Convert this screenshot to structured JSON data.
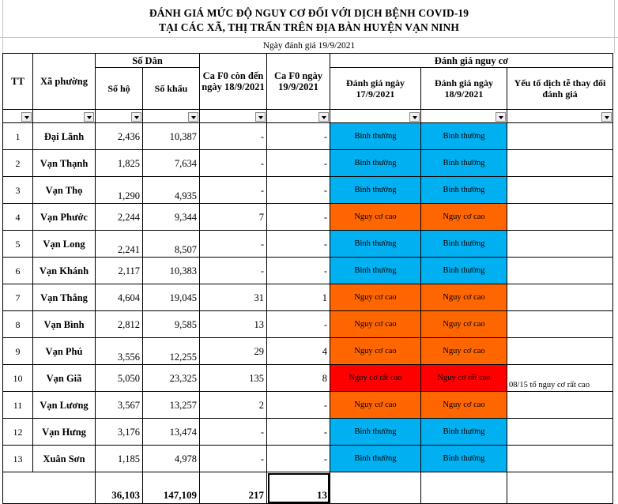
{
  "title_line1": "ĐÁNH GIÁ MỨC ĐỘ NGUY CƠ ĐỐI VỚI DỊCH BỆNH COVID-19",
  "title_line2": "TẠI CÁC XÃ, THỊ TRẤN TRÊN ĐỊA BÀN HUYỆN VẠN NINH",
  "eval_date": "Ngày đánh giá 19/9/2021",
  "headers": {
    "tt": "TT",
    "ward": "Xã phường",
    "population": "Số Dân",
    "households": "Số hộ",
    "persons": "Số khẩu",
    "f0_remaining": "Ca F0 còn đến ngày 18/9/2021",
    "f0_day": "Ca F0 ngày 19/9/2021",
    "risk": "Đánh giá nguy cơ",
    "risk_17": "Đánh giá ngày 17/9/2021",
    "risk_18": "Đánh giá ngày 18/9/2021",
    "factors": "Yếu tố dịch tễ thay đổi đánh giá"
  },
  "colors": {
    "normal": "#00b0f0",
    "high": "#ff6600",
    "very_high": "#ff0000"
  },
  "rows": [
    {
      "tt": "1",
      "name": "Đại Lãnh",
      "ho": "2,436",
      "khau": "10,387",
      "f0_remaining": "-",
      "f0_day": "-",
      "risk17": "Bình thường",
      "risk18": "Bình thường",
      "note": ""
    },
    {
      "tt": "2",
      "name": "Vạn Thạnh",
      "ho": "1,825",
      "khau": "7,634",
      "f0_remaining": "-",
      "f0_day": "-",
      "risk17": "Bình thường",
      "risk18": "Bình thường",
      "note": ""
    },
    {
      "tt": "3",
      "name": "Vạn Thọ",
      "ho": "1,290",
      "khau": "4,935",
      "f0_remaining": "-",
      "f0_day": "-",
      "risk17": "Bình thường",
      "risk18": "Bình thường",
      "note": ""
    },
    {
      "tt": "4",
      "name": "Vạn Phước",
      "ho": "2,244",
      "khau": "9,344",
      "f0_remaining": "7",
      "f0_day": "-",
      "risk17": "Nguy cơ cao",
      "risk18": "Nguy cơ cao",
      "note": ""
    },
    {
      "tt": "5",
      "name": "Vạn Long",
      "ho": "2,241",
      "khau": "8,507",
      "f0_remaining": "-",
      "f0_day": "-",
      "risk17": "Bình thường",
      "risk18": "Bình thường",
      "note": ""
    },
    {
      "tt": "6",
      "name": "Vạn Khánh",
      "ho": "2,117",
      "khau": "10,383",
      "f0_remaining": "-",
      "f0_day": "-",
      "risk17": "Bình thường",
      "risk18": "Bình thường",
      "note": ""
    },
    {
      "tt": "7",
      "name": "Vạn Thắng",
      "ho": "4,604",
      "khau": "19,045",
      "f0_remaining": "31",
      "f0_day": "1",
      "risk17": "Nguy cơ cao",
      "risk18": "Nguy cơ cao",
      "note": ""
    },
    {
      "tt": "8",
      "name": "Vạn Bình",
      "ho": "2,812",
      "khau": "9,585",
      "f0_remaining": "13",
      "f0_day": "-",
      "risk17": "Nguy cơ cao",
      "risk18": "Nguy cơ cao",
      "note": ""
    },
    {
      "tt": "9",
      "name": "Vạn Phú",
      "ho": "3,556",
      "khau": "12,255",
      "f0_remaining": "29",
      "f0_day": "4",
      "risk17": "Nguy cơ cao",
      "risk18": "Nguy cơ cao",
      "note": ""
    },
    {
      "tt": "10",
      "name": "Vạn Giã",
      "ho": "5,050",
      "khau": "23,325",
      "f0_remaining": "135",
      "f0_day": "8",
      "risk17": "Nguy cơ rất cao",
      "risk18": "Nguy cơ rất cao",
      "note": "08/15 tổ nguy cơ rất cao"
    },
    {
      "tt": "11",
      "name": "Vạn Lương",
      "ho": "3,567",
      "khau": "13,257",
      "f0_remaining": "2",
      "f0_day": "-",
      "risk17": "Nguy cơ cao",
      "risk18": "Nguy cơ cao",
      "note": ""
    },
    {
      "tt": "12",
      "name": "Vạn Hưng",
      "ho": "3,176",
      "khau": "13,474",
      "f0_remaining": "-",
      "f0_day": "-",
      "risk17": "Bình thường",
      "risk18": "Bình thường",
      "note": ""
    },
    {
      "tt": "13",
      "name": "Xuân Sơn",
      "ho": "1,185",
      "khau": "4,978",
      "f0_remaining": "-",
      "f0_day": "-",
      "risk17": "Bình thường",
      "risk18": "Bình thường",
      "note": ""
    }
  ],
  "totals": {
    "ho": "36,103",
    "khau": "147,109",
    "f0_remaining": "217",
    "f0_day": "13"
  }
}
